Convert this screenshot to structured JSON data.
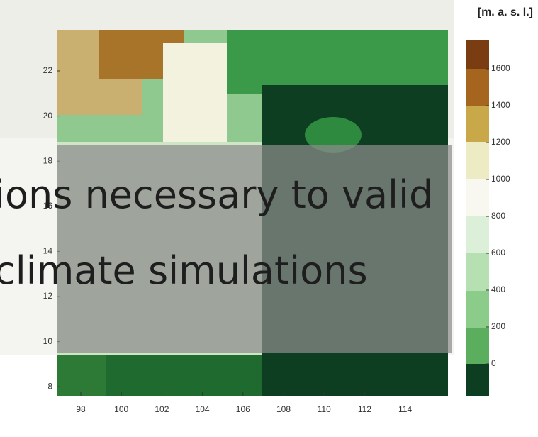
{
  "unit_label": "[m. a. s. l.]",
  "map": {
    "yticks": [
      22,
      20,
      18,
      16,
      14,
      12,
      10,
      8
    ],
    "xticks": [
      98,
      100,
      102,
      104,
      106,
      108,
      110,
      112,
      114
    ]
  },
  "colorbar": {
    "ticks": [
      1600,
      1400,
      1200,
      1000,
      800,
      600,
      400,
      200,
      0
    ]
  },
  "overlay": {
    "lines": [
      "ions necessary to valid",
      "climate simulations"
    ]
  }
}
